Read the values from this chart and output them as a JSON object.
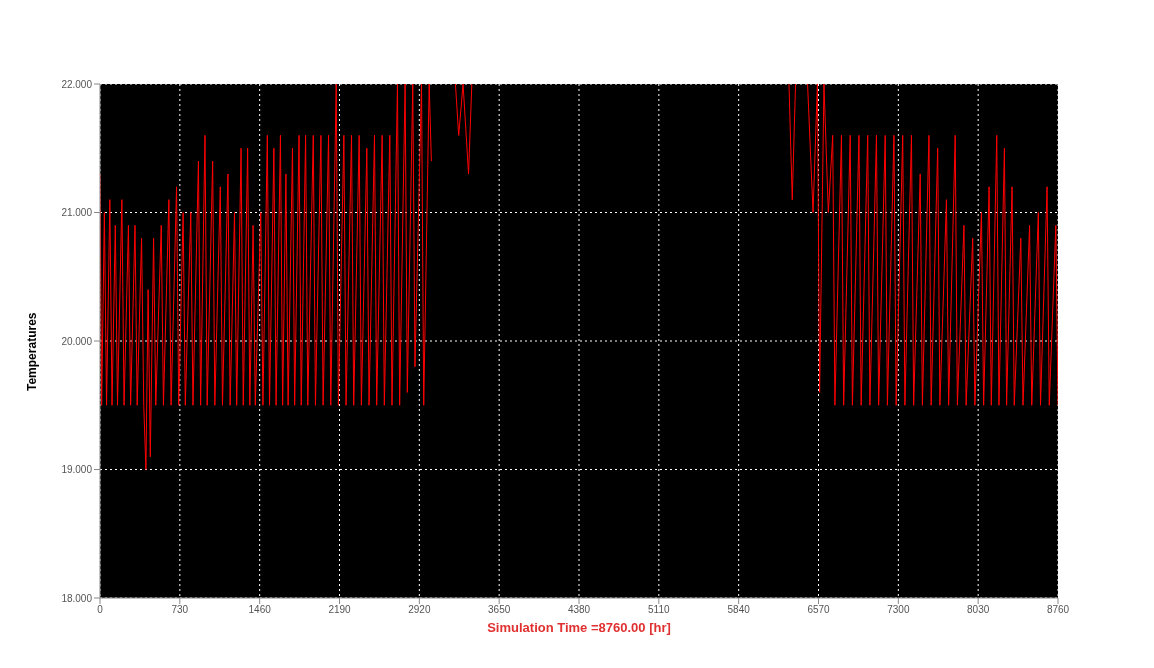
{
  "chart_data": {
    "type": "line",
    "xlabel": "Simulation Time =8760.00 [hr]",
    "ylabel": "Temperatures",
    "x": [
      0,
      15,
      40,
      60,
      90,
      110,
      140,
      160,
      200,
      220,
      260,
      280,
      320,
      340,
      380,
      400,
      420,
      440,
      460,
      490,
      510,
      560,
      580,
      630,
      650,
      700,
      720,
      760,
      780,
      830,
      850,
      900,
      920,
      960,
      980,
      1030,
      1050,
      1100,
      1120,
      1170,
      1190,
      1230,
      1250,
      1290,
      1310,
      1350,
      1370,
      1400,
      1420,
      1470,
      1490,
      1530,
      1550,
      1590,
      1610,
      1650,
      1670,
      1700,
      1720,
      1760,
      1780,
      1820,
      1840,
      1880,
      1900,
      1950,
      1970,
      2020,
      2040,
      2090,
      2110,
      2160,
      2180,
      2230,
      2250,
      2300,
      2320,
      2370,
      2390,
      2440,
      2460,
      2510,
      2530,
      2580,
      2600,
      2650,
      2670,
      2720,
      2740,
      2790,
      2810,
      2860,
      2880,
      2940,
      2960,
      3010,
      3030,
      3100,
      3250,
      3280,
      3320,
      3370,
      3400,
      3500,
      6300,
      6330,
      6360,
      6420,
      6470,
      6520,
      6560,
      6580,
      6620,
      6660,
      6700,
      6720,
      6780,
      6800,
      6860,
      6880,
      6940,
      6960,
      7020,
      7040,
      7100,
      7120,
      7180,
      7200,
      7260,
      7280,
      7340,
      7360,
      7420,
      7440,
      7500,
      7520,
      7580,
      7600,
      7660,
      7680,
      7740,
      7760,
      7820,
      7840,
      7900,
      7920,
      7980,
      8000,
      8060,
      8080,
      8130,
      8150,
      8200,
      8220,
      8270,
      8290,
      8340,
      8360,
      8420,
      8440,
      8500,
      8520,
      8580,
      8600,
      8660,
      8680,
      8740,
      8760
    ],
    "series": [
      {
        "color": "#ff0000",
        "values": [
          21.3,
          19.5,
          21.0,
          19.5,
          21.1,
          19.5,
          20.9,
          19.5,
          21.1,
          19.5,
          20.9,
          19.5,
          20.9,
          19.5,
          20.8,
          19.5,
          19.0,
          20.4,
          19.1,
          20.8,
          19.5,
          20.9,
          19.5,
          21.1,
          19.5,
          21.2,
          19.5,
          21.0,
          19.5,
          21.0,
          19.5,
          21.4,
          19.5,
          21.6,
          19.5,
          21.4,
          19.5,
          21.2,
          19.5,
          21.3,
          19.5,
          21.0,
          19.5,
          21.5,
          19.5,
          21.5,
          19.5,
          20.9,
          19.5,
          21.0,
          19.5,
          21.6,
          19.5,
          21.5,
          19.5,
          21.6,
          19.5,
          21.3,
          19.5,
          21.5,
          19.5,
          21.6,
          19.5,
          21.6,
          19.5,
          21.6,
          19.5,
          21.6,
          19.5,
          21.6,
          19.5,
          22.0,
          19.5,
          21.6,
          19.5,
          21.6,
          19.5,
          21.6,
          19.5,
          21.5,
          19.5,
          21.6,
          19.5,
          21.6,
          19.5,
          21.6,
          19.5,
          22.0,
          19.5,
          22.0,
          19.6,
          22.0,
          19.8,
          22.0,
          19.5,
          22.0,
          21.4,
          null,
          22.0,
          21.6,
          22.0,
          21.3,
          22.0,
          null,
          22.0,
          21.1,
          22.0,
          null,
          22.0,
          21.0,
          22.0,
          19.6,
          22.0,
          21.0,
          21.6,
          19.5,
          21.6,
          19.5,
          21.6,
          19.5,
          21.6,
          19.5,
          21.6,
          19.5,
          21.6,
          19.5,
          21.6,
          19.5,
          21.6,
          19.5,
          21.6,
          19.5,
          21.6,
          19.5,
          21.3,
          19.5,
          21.6,
          19.5,
          21.5,
          19.5,
          21.1,
          19.5,
          21.6,
          19.5,
          20.9,
          19.5,
          20.8,
          19.5,
          21.0,
          19.5,
          21.2,
          19.5,
          21.6,
          19.5,
          21.5,
          19.5,
          21.2,
          19.5,
          20.8,
          19.5,
          20.9,
          19.5,
          21.0,
          19.5,
          21.2,
          19.5,
          20.9,
          19.5
        ]
      }
    ],
    "xlim": [
      0,
      8760
    ],
    "xticks": [
      0,
      730,
      1460,
      2190,
      2920,
      3650,
      4380,
      5110,
      5840,
      6570,
      7300,
      8030,
      8760
    ],
    "ylim": [
      18,
      22
    ],
    "yticks": [
      {
        "value": 18,
        "label": "18.000"
      },
      {
        "value": 19,
        "label": "19.000"
      },
      {
        "value": 20,
        "label": "20.000"
      },
      {
        "value": 21,
        "label": "21.000"
      },
      {
        "value": 22,
        "label": "22.000"
      }
    ],
    "grid": true,
    "marker": "none",
    "line_style": "solid"
  }
}
